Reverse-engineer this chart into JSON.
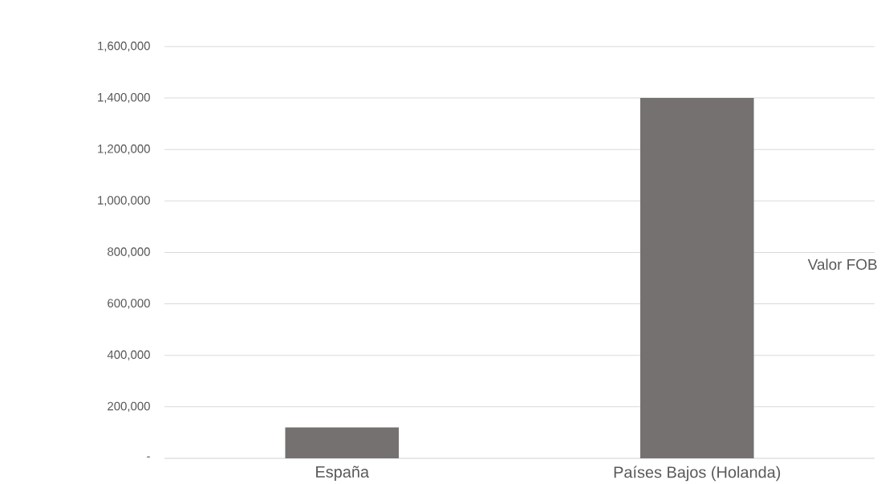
{
  "chart_data": {
    "type": "bar",
    "categories": [
      "España",
      "Países Bajos (Holanda)"
    ],
    "series": [
      {
        "name": "Valor FOB",
        "color": "#757171",
        "values": [
          120000,
          1400000
        ]
      }
    ],
    "ylim": [
      0,
      1600000
    ],
    "yticks": [
      {
        "value": 0,
        "label": "-"
      },
      {
        "value": 200000,
        "label": "200,000"
      },
      {
        "value": 400000,
        "label": "400,000"
      },
      {
        "value": 600000,
        "label": "600,000"
      },
      {
        "value": 800000,
        "label": "800,000"
      },
      {
        "value": 1000000,
        "label": "1,000,000"
      },
      {
        "value": 1200000,
        "label": "1,200,000"
      },
      {
        "value": 1400000,
        "label": "1,400,000"
      },
      {
        "value": 1600000,
        "label": "1,600,000"
      }
    ],
    "grid": "y",
    "legend": "right"
  }
}
